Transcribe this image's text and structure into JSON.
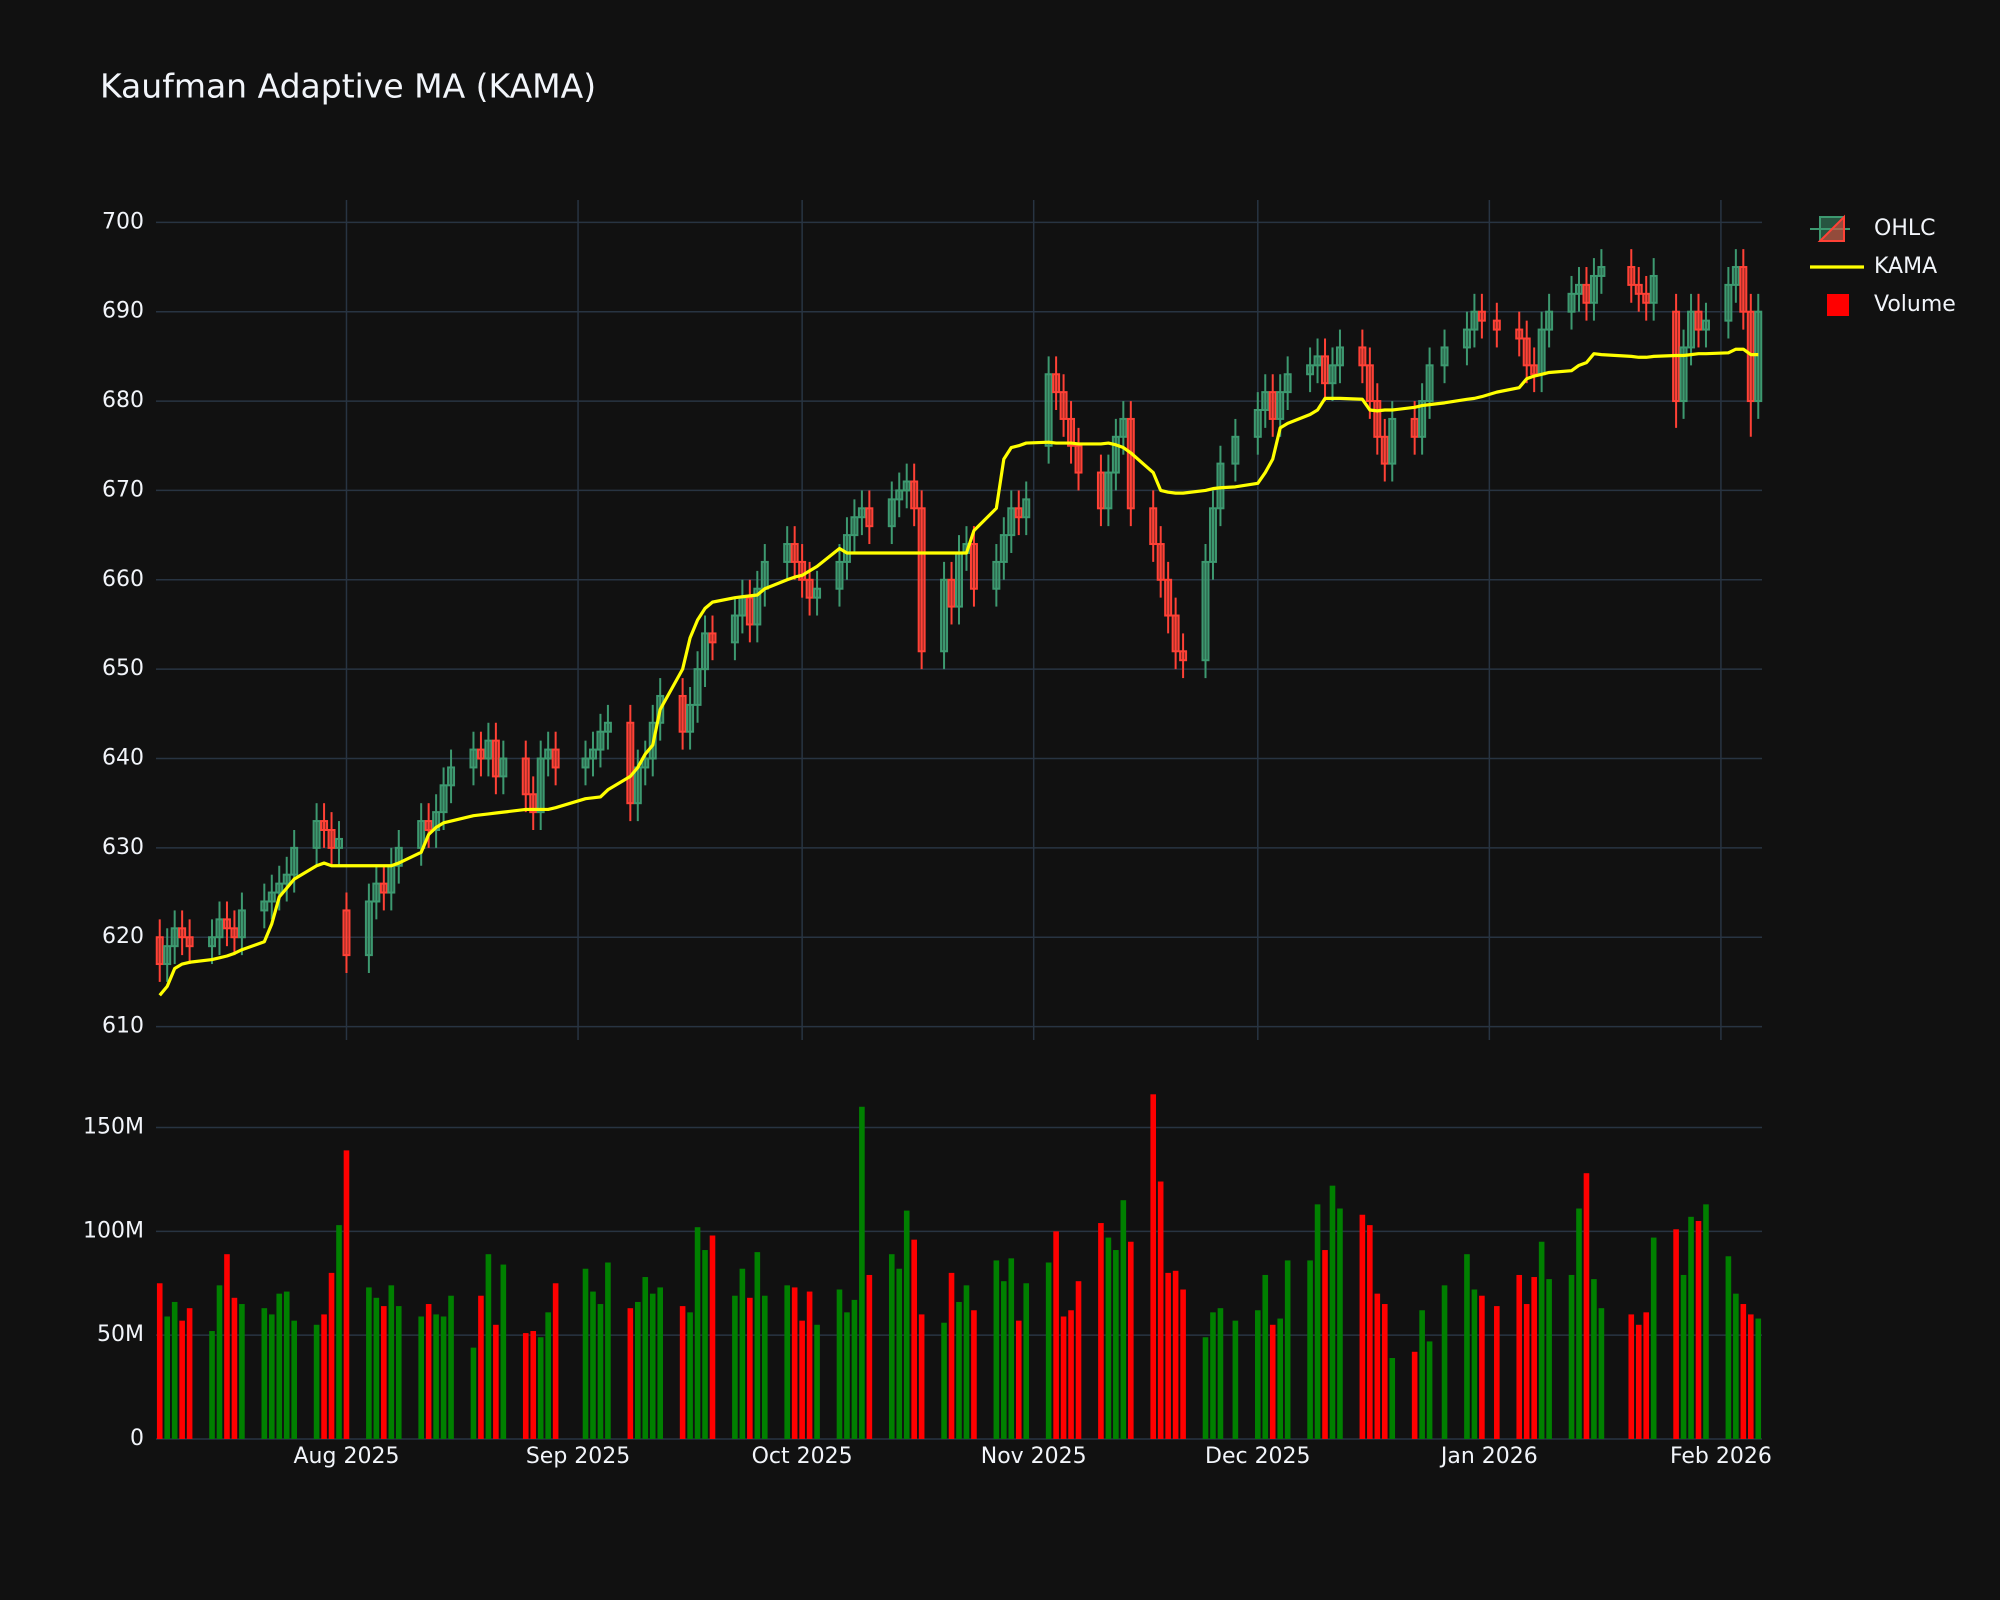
{
  "chart_data": {
    "type": "candlestick",
    "title": "Kaufman Adaptive MA (KAMA)",
    "x": [
      "2025-07-07",
      "2025-07-08",
      "2025-07-09",
      "2025-07-10",
      "2025-07-11",
      "2025-07-14",
      "2025-07-15",
      "2025-07-16",
      "2025-07-17",
      "2025-07-18",
      "2025-07-21",
      "2025-07-22",
      "2025-07-23",
      "2025-07-24",
      "2025-07-25",
      "2025-07-28",
      "2025-07-29",
      "2025-07-30",
      "2025-07-31",
      "2025-08-01",
      "2025-08-04",
      "2025-08-05",
      "2025-08-06",
      "2025-08-07",
      "2025-08-08",
      "2025-08-11",
      "2025-08-12",
      "2025-08-13",
      "2025-08-14",
      "2025-08-15",
      "2025-08-18",
      "2025-08-19",
      "2025-08-20",
      "2025-08-21",
      "2025-08-22",
      "2025-08-25",
      "2025-08-26",
      "2025-08-27",
      "2025-08-28",
      "2025-08-29",
      "2025-09-02",
      "2025-09-03",
      "2025-09-04",
      "2025-09-05",
      "2025-09-08",
      "2025-09-09",
      "2025-09-10",
      "2025-09-11",
      "2025-09-12",
      "2025-09-15",
      "2025-09-16",
      "2025-09-17",
      "2025-09-18",
      "2025-09-19",
      "2025-09-22",
      "2025-09-23",
      "2025-09-24",
      "2025-09-25",
      "2025-09-26",
      "2025-09-29",
      "2025-09-30",
      "2025-10-01",
      "2025-10-02",
      "2025-10-03",
      "2025-10-06",
      "2025-10-07",
      "2025-10-08",
      "2025-10-09",
      "2025-10-10",
      "2025-10-13",
      "2025-10-14",
      "2025-10-15",
      "2025-10-16",
      "2025-10-17",
      "2025-10-20",
      "2025-10-21",
      "2025-10-22",
      "2025-10-23",
      "2025-10-24",
      "2025-10-27",
      "2025-10-28",
      "2025-10-29",
      "2025-10-30",
      "2025-10-31",
      "2025-11-03",
      "2025-11-04",
      "2025-11-05",
      "2025-11-06",
      "2025-11-07",
      "2025-11-10",
      "2025-11-11",
      "2025-11-12",
      "2025-11-13",
      "2025-11-14",
      "2025-11-17",
      "2025-11-18",
      "2025-11-19",
      "2025-11-20",
      "2025-11-21",
      "2025-11-24",
      "2025-11-25",
      "2025-11-26",
      "2025-11-28",
      "2025-12-01",
      "2025-12-02",
      "2025-12-03",
      "2025-12-04",
      "2025-12-05",
      "2025-12-08",
      "2025-12-09",
      "2025-12-10",
      "2025-12-11",
      "2025-12-12",
      "2025-12-15",
      "2025-12-16",
      "2025-12-17",
      "2025-12-18",
      "2025-12-19",
      "2025-12-22",
      "2025-12-23",
      "2025-12-24",
      "2025-12-26",
      "2025-12-29",
      "2025-12-30",
      "2025-12-31",
      "2026-01-02",
      "2026-01-05",
      "2026-01-06",
      "2026-01-07",
      "2026-01-08",
      "2026-01-09",
      "2026-01-12",
      "2026-01-13",
      "2026-01-14",
      "2026-01-15",
      "2026-01-16",
      "2026-01-20",
      "2026-01-21",
      "2026-01-22",
      "2026-01-23",
      "2026-01-26",
      "2026-01-27",
      "2026-01-28",
      "2026-01-29",
      "2026-01-30",
      "2026-02-02",
      "2026-02-03",
      "2026-02-04",
      "2026-02-05",
      "2026-02-06"
    ],
    "ohlc": {
      "name": "OHLC",
      "increasing_color": "#3d9970",
      "decreasing_color": "#ff4136",
      "open": [
        620,
        617,
        619,
        621,
        620,
        619,
        620,
        622,
        621,
        620,
        623,
        624,
        625,
        626,
        627,
        630,
        633,
        632,
        630,
        623,
        618,
        624,
        626,
        625,
        628,
        630,
        633,
        632,
        634,
        637,
        639,
        641,
        640,
        642,
        638,
        640,
        636,
        634,
        640,
        641,
        639,
        640,
        641,
        643,
        644,
        635,
        639,
        640,
        644,
        647,
        643,
        646,
        650,
        654,
        653,
        656,
        658,
        655,
        659,
        662,
        664,
        662,
        660,
        658,
        659,
        662,
        665,
        667,
        668,
        666,
        669,
        670,
        671,
        668,
        652,
        660,
        657,
        663,
        664,
        659,
        662,
        665,
        668,
        667,
        675,
        683,
        681,
        678,
        675,
        672,
        668,
        672,
        676,
        678,
        668,
        664,
        660,
        656,
        652,
        651,
        662,
        668,
        673,
        676,
        679,
        681,
        678,
        681,
        683,
        684,
        685,
        682,
        684,
        686,
        684,
        680,
        676,
        673,
        678,
        676,
        680,
        684,
        686,
        688,
        690,
        689,
        688,
        687,
        684,
        683,
        688,
        690,
        692,
        693,
        691,
        694,
        695,
        693,
        692,
        691,
        690,
        680,
        686,
        690,
        688,
        689,
        693,
        695,
        690,
        680
      ],
      "high": [
        622,
        621,
        623,
        623,
        622,
        622,
        624,
        624,
        623,
        625,
        626,
        627,
        628,
        629,
        632,
        635,
        635,
        634,
        633,
        625,
        626,
        628,
        628,
        630,
        632,
        635,
        635,
        636,
        639,
        641,
        643,
        643,
        644,
        644,
        642,
        642,
        638,
        642,
        643,
        643,
        642,
        643,
        645,
        646,
        646,
        641,
        642,
        646,
        649,
        649,
        648,
        652,
        656,
        656,
        658,
        660,
        660,
        661,
        664,
        666,
        666,
        664,
        662,
        661,
        664,
        667,
        669,
        670,
        670,
        671,
        672,
        673,
        673,
        670,
        662,
        662,
        665,
        666,
        666,
        664,
        667,
        670,
        670,
        671,
        685,
        685,
        683,
        680,
        677,
        674,
        674,
        678,
        680,
        680,
        670,
        666,
        662,
        658,
        654,
        664,
        670,
        675,
        678,
        681,
        683,
        683,
        683,
        685,
        686,
        687,
        687,
        686,
        688,
        688,
        686,
        682,
        678,
        680,
        680,
        682,
        686,
        688,
        690,
        692,
        692,
        691,
        690,
        689,
        686,
        690,
        692,
        694,
        695,
        695,
        696,
        697,
        697,
        695,
        694,
        696,
        692,
        688,
        692,
        692,
        691,
        695,
        697,
        697,
        692,
        692
      ],
      "low": [
        615,
        615,
        617,
        618,
        617,
        617,
        618,
        619,
        618,
        618,
        621,
        622,
        623,
        624,
        625,
        628,
        630,
        628,
        628,
        616,
        616,
        622,
        623,
        623,
        626,
        628,
        630,
        630,
        632,
        635,
        637,
        638,
        638,
        636,
        636,
        634,
        632,
        632,
        638,
        637,
        637,
        638,
        639,
        641,
        633,
        633,
        637,
        638,
        642,
        641,
        641,
        644,
        648,
        651,
        651,
        654,
        653,
        653,
        657,
        660,
        660,
        658,
        656,
        656,
        657,
        660,
        663,
        665,
        664,
        664,
        667,
        668,
        666,
        650,
        650,
        655,
        655,
        661,
        657,
        657,
        660,
        663,
        665,
        665,
        673,
        679,
        676,
        673,
        670,
        666,
        666,
        670,
        674,
        666,
        662,
        658,
        654,
        650,
        649,
        649,
        660,
        666,
        671,
        674,
        677,
        676,
        676,
        679,
        681,
        682,
        680,
        680,
        682,
        682,
        678,
        674,
        671,
        671,
        674,
        674,
        678,
        682,
        684,
        686,
        687,
        686,
        685,
        682,
        681,
        681,
        686,
        688,
        690,
        689,
        689,
        692,
        691,
        690,
        689,
        689,
        677,
        678,
        684,
        686,
        686,
        687,
        691,
        688,
        676,
        678
      ],
      "close": [
        617,
        619,
        621,
        620,
        619,
        620,
        622,
        621,
        620,
        623,
        624,
        625,
        626,
        627,
        630,
        633,
        632,
        630,
        631,
        618,
        624,
        626,
        625,
        628,
        630,
        633,
        632,
        634,
        637,
        639,
        641,
        640,
        642,
        638,
        640,
        636,
        634,
        640,
        641,
        639,
        640,
        641,
        643,
        644,
        635,
        639,
        640,
        644,
        647,
        643,
        646,
        650,
        654,
        653,
        656,
        658,
        655,
        659,
        662,
        664,
        662,
        660,
        658,
        659,
        662,
        665,
        667,
        668,
        666,
        669,
        670,
        671,
        668,
        652,
        660,
        657,
        663,
        664,
        659,
        662,
        665,
        668,
        667,
        669,
        683,
        681,
        678,
        675,
        672,
        668,
        672,
        676,
        678,
        668,
        664,
        660,
        656,
        652,
        651,
        662,
        668,
        673,
        676,
        679,
        681,
        678,
        681,
        683,
        684,
        685,
        682,
        684,
        686,
        684,
        680,
        676,
        673,
        678,
        676,
        680,
        684,
        686,
        688,
        690,
        689,
        688,
        687,
        684,
        683,
        688,
        690,
        692,
        693,
        691,
        694,
        695,
        693,
        692,
        691,
        694,
        680,
        686,
        690,
        688,
        689,
        693,
        695,
        690,
        680,
        690
      ]
    },
    "series": [
      {
        "name": "KAMA",
        "color": "#ffff00",
        "values": [
          613.5,
          614.5,
          616.5,
          617,
          617.2,
          617.5,
          617.7,
          617.9,
          618.2,
          618.6,
          619.5,
          621.5,
          624.5,
          625.5,
          626.5,
          628,
          628.3,
          628,
          628,
          628,
          628,
          628,
          628,
          628,
          628.3,
          629.5,
          631.5,
          632.3,
          632.8,
          633,
          633.6,
          633.7,
          633.8,
          633.9,
          634,
          634.3,
          634.3,
          634.3,
          634.3,
          634.5,
          635.5,
          635.6,
          635.7,
          636.5,
          638,
          639,
          640.5,
          641.5,
          645.5,
          650,
          653.5,
          655.5,
          656.8,
          657.5,
          658,
          658.1,
          658.2,
          658.3,
          659,
          660,
          660.3,
          660.5,
          661,
          661.5,
          663.5,
          663,
          663,
          663,
          663,
          663,
          663,
          663,
          663,
          663,
          663,
          663,
          663,
          663,
          665.5,
          668,
          673.5,
          674.8,
          675,
          675.3,
          675.4,
          675.3,
          675.3,
          675.3,
          675.2,
          675.2,
          675.3,
          675.1,
          674.8,
          674.2,
          672,
          670,
          669.8,
          669.7,
          669.7,
          670,
          670.2,
          670.3,
          670.4,
          670.8,
          672,
          673.5,
          677,
          677.5,
          678.5,
          679,
          680.3,
          680.3,
          680.3,
          680.2,
          679,
          678.9,
          679,
          679,
          679.3,
          679.5,
          679.6,
          679.8,
          680.2,
          680.3,
          680.5,
          681,
          681.5,
          682.5,
          682.8,
          683,
          683.2,
          683.4,
          684,
          684.3,
          685.3,
          685.2,
          685,
          684.9,
          684.9,
          685,
          685.1,
          685.1,
          685.2,
          685.3,
          685.3,
          685.4,
          685.8,
          685.8,
          685.2,
          685.2
        ]
      }
    ],
    "volume": {
      "name": "Volume",
      "legend_color": "#ff0000",
      "increasing_color": "#008000",
      "decreasing_color": "#ff0000",
      "values": [
        75,
        59,
        66,
        57,
        63,
        52,
        74,
        89,
        68,
        65,
        63,
        60,
        70,
        71,
        57,
        55,
        60,
        80,
        103,
        139,
        73,
        68,
        64,
        74,
        64,
        59,
        65,
        60,
        59,
        69,
        44,
        69,
        89,
        55,
        84,
        51,
        52,
        49,
        61,
        75,
        82,
        71,
        65,
        85,
        63,
        66,
        78,
        70,
        73,
        64,
        61,
        102,
        91,
        98,
        69,
        82,
        68,
        90,
        69,
        74,
        73,
        57,
        71,
        55,
        72,
        61,
        67,
        160,
        79,
        89,
        82,
        110,
        96,
        60,
        56,
        80,
        66,
        74,
        62,
        86,
        76,
        87,
        57,
        75,
        85,
        100,
        59,
        62,
        76,
        104,
        97,
        91,
        115,
        95,
        166,
        124,
        80,
        81,
        72,
        49,
        61,
        63,
        57,
        62,
        79,
        55,
        58,
        86,
        86,
        113,
        91,
        122,
        111,
        108,
        103,
        70,
        65,
        39,
        42,
        62,
        47,
        74,
        89,
        72,
        69,
        64,
        79,
        65,
        78,
        95,
        77,
        79,
        111,
        128,
        77,
        63,
        60,
        55,
        61,
        97,
        101,
        79,
        107,
        105,
        113,
        88,
        70,
        65,
        60,
        58
      ],
      "ylim": [
        0,
        170
      ],
      "yticks": [
        0,
        {
          "value": 50,
          "label": "50M"
        },
        {
          "value": 100,
          "label": "100M"
        },
        {
          "value": 150,
          "label": "150M"
        }
      ]
    },
    "xlim": [
      "2025-07-06T12:00:00Z",
      "2026-02-06T12:00:00Z"
    ],
    "xticks": [
      {
        "value": "2025-08-01",
        "label": "Aug 2025"
      },
      {
        "value": "2025-09-01",
        "label": "Sep 2025"
      },
      {
        "value": "2025-10-01",
        "label": "Oct 2025"
      },
      {
        "value": "2025-11-01",
        "label": "Nov 2025"
      },
      {
        "value": "2025-12-01",
        "label": "Dec 2025"
      },
      {
        "value": "2026-01-01",
        "label": "Jan 2026"
      },
      {
        "value": "2026-02-01",
        "label": "Feb 2026"
      }
    ],
    "ylim": [
      608.5,
      702.5
    ],
    "yticks": [
      610,
      620,
      630,
      640,
      650,
      660,
      670,
      680,
      690,
      700
    ],
    "grid": true,
    "legend": "top-right"
  }
}
